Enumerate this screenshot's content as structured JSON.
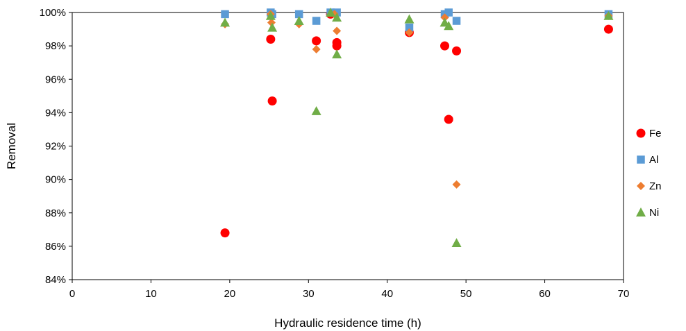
{
  "chart_data": {
    "type": "scatter",
    "title": "",
    "xlabel": "Hydraulic residence time (h)",
    "ylabel": "Removal",
    "xlim": [
      0,
      70
    ],
    "ylim": [
      0.84,
      1.0
    ],
    "x_ticks": [
      0,
      10,
      20,
      30,
      40,
      50,
      60,
      70
    ],
    "x_tick_labels": [
      "0",
      "10",
      "20",
      "30",
      "40",
      "50",
      "60",
      "70"
    ],
    "y_ticks": [
      0.84,
      0.86,
      0.88,
      0.9,
      0.92,
      0.94,
      0.96,
      0.98,
      1.0
    ],
    "y_tick_labels": [
      "84%",
      "86%",
      "88%",
      "90%",
      "92%",
      "94%",
      "96%",
      "98%",
      "100%"
    ],
    "grid": false,
    "legend_position": "right",
    "series": [
      {
        "name": "Fe",
        "marker": "circle",
        "color": "#ff0000",
        "points": [
          [
            19.4,
            0.868
          ],
          [
            25.2,
            0.984
          ],
          [
            25.4,
            0.947
          ],
          [
            31.0,
            0.983
          ],
          [
            33.6,
            0.982
          ],
          [
            33.6,
            0.98
          ],
          [
            42.8,
            0.988
          ],
          [
            47.3,
            0.98
          ],
          [
            47.8,
            0.936
          ],
          [
            48.8,
            0.977
          ],
          [
            68.1,
            0.99
          ],
          [
            32.8,
            0.999
          ],
          [
            25.3,
            0.999
          ]
        ]
      },
      {
        "name": "Al",
        "marker": "square",
        "color": "#5b9bd5",
        "points": [
          [
            19.4,
            0.999
          ],
          [
            25.2,
            1.0
          ],
          [
            25.4,
            0.999
          ],
          [
            28.8,
            0.999
          ],
          [
            31.0,
            0.995
          ],
          [
            32.8,
            1.0
          ],
          [
            33.6,
            1.0
          ],
          [
            42.8,
            0.991
          ],
          [
            47.3,
            0.999
          ],
          [
            47.8,
            1.0
          ],
          [
            48.8,
            0.995
          ],
          [
            68.1,
            0.999
          ]
        ]
      },
      {
        "name": "Zn",
        "marker": "diamond",
        "color": "#ed7d31",
        "points": [
          [
            19.4,
            0.993
          ],
          [
            25.3,
            0.994
          ],
          [
            28.8,
            0.993
          ],
          [
            31.0,
            0.978
          ],
          [
            33.6,
            0.989
          ],
          [
            33.3,
            0.999
          ],
          [
            42.8,
            0.988
          ],
          [
            47.3,
            0.997
          ],
          [
            48.8,
            0.897
          ],
          [
            68.1,
            0.998
          ],
          [
            25.2,
            0.999
          ]
        ]
      },
      {
        "name": "Ni",
        "marker": "triangle",
        "color": "#70ad47",
        "points": [
          [
            19.4,
            0.994
          ],
          [
            25.2,
            0.998
          ],
          [
            25.4,
            0.991
          ],
          [
            28.8,
            0.995
          ],
          [
            31.0,
            0.941
          ],
          [
            32.8,
            1.0
          ],
          [
            33.6,
            0.997
          ],
          [
            33.6,
            0.975
          ],
          [
            42.8,
            0.996
          ],
          [
            47.3,
            0.994
          ],
          [
            47.8,
            0.992
          ],
          [
            48.8,
            0.862
          ],
          [
            68.1,
            0.998
          ]
        ]
      }
    ]
  }
}
